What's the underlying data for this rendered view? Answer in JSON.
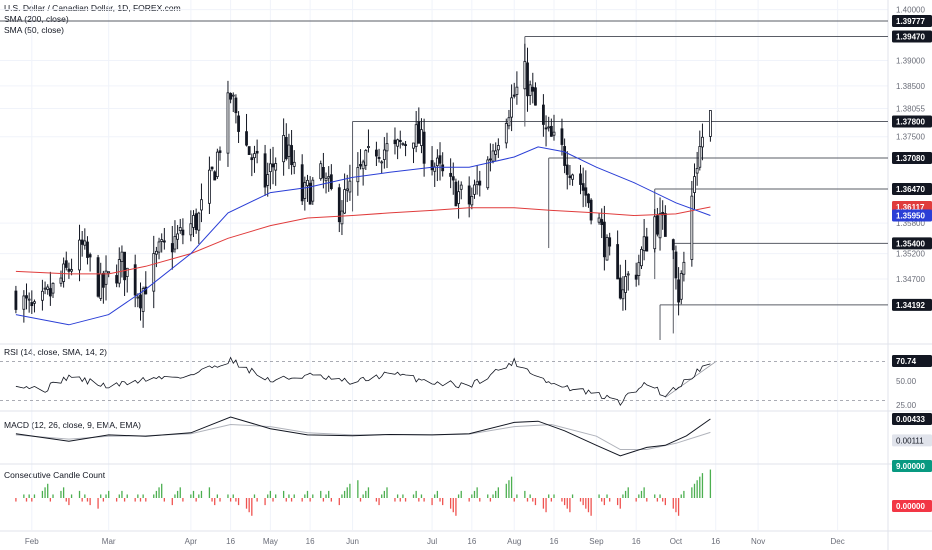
{
  "header": {
    "title": "U.S. Dollar / Canadian Dollar, 1D, FOREX.com",
    "sma200_label": "SMA (200, close)",
    "sma50_label": "SMA (50, close)"
  },
  "panes": {
    "rsi_label": "RSI (14, close, SMA, 14, 2)",
    "macd_label": "MACD (12, 26, close, 9, EMA, EMA)",
    "ccc_label": "Consecutive Candle Count"
  },
  "colors": {
    "bull": "#ffffff",
    "bear": "#131722",
    "wick": "#131722",
    "sma50": "#2a3ed6",
    "sma200": "#e03c3c",
    "rsi": "#131722",
    "rsi_ma": "#b0b3bb",
    "macd": "#131722",
    "signal": "#b0b3bb",
    "count_up": "#4caf50",
    "count_down": "#ef5350",
    "level_line": "#5a5d66"
  },
  "chart_data": {
    "type": "candlestick",
    "title": "U.S. Dollar / Canadian Dollar, 1D, FOREX.com",
    "x_axis": {
      "tick_labels": [
        "Feb",
        "Mar",
        "Apr",
        "16",
        "May",
        "16",
        "Jun",
        "Jul",
        "16",
        "Aug",
        "16",
        "Sep",
        "16",
        "Oct",
        "16",
        "Nov",
        "Dec"
      ],
      "tick_dates": [
        "2024-02-01",
        "2024-03-01",
        "2024-04-01",
        "2024-04-16",
        "2024-05-01",
        "2024-05-16",
        "2024-06-01",
        "2024-07-01",
        "2024-07-16",
        "2024-08-01",
        "2024-08-16",
        "2024-09-01",
        "2024-09-16",
        "2024-10-01",
        "2024-10-16",
        "2024-11-01",
        "2024-12-01"
      ]
    },
    "price_axis": {
      "ylim": [
        1.335,
        1.4015
      ],
      "tick_labels": [
        "1.40000",
        "1.39000",
        "1.38500",
        "1.38055",
        "1.37500",
        "1.35800",
        "1.35200",
        "1.34700"
      ],
      "tick_values": [
        1.4,
        1.39,
        1.385,
        1.38055,
        1.375,
        1.358,
        1.352,
        1.347
      ]
    },
    "levels": [
      {
        "label": "1.39777",
        "value": 1.39777,
        "from": "2023-11-01"
      },
      {
        "label": "1.39470",
        "value": 1.3947,
        "from": "2024-08-05"
      },
      {
        "label": "1.37800",
        "value": 1.378,
        "from": "2024-06-01"
      },
      {
        "label": "1.37080",
        "value": 1.3708,
        "from": "2024-08-14"
      },
      {
        "label": "1.36470",
        "value": 1.3647,
        "from": "2024-09-23"
      },
      {
        "label": "1.35400",
        "value": 1.354,
        "from": "2024-09-30"
      },
      {
        "label": "1.34192",
        "value": 1.34192,
        "from": "2024-09-25"
      }
    ],
    "price_tags": [
      {
        "label": "1.36117",
        "value": 1.36117,
        "color": "#e03c3c"
      },
      {
        "label": "1.35950",
        "value": 1.3595,
        "color": "#2a3ed6"
      }
    ],
    "close_path": [
      [
        "2024-01-26",
        1.344
      ],
      [
        "2024-02-02",
        1.34
      ],
      [
        "2024-02-13",
        1.3475
      ],
      [
        "2024-02-20",
        1.353
      ],
      [
        "2024-02-27",
        1.345
      ],
      [
        "2024-03-06",
        1.35
      ],
      [
        "2024-03-13",
        1.344
      ],
      [
        "2024-03-20",
        1.352
      ],
      [
        "2024-03-27",
        1.355
      ],
      [
        "2024-04-04",
        1.359
      ],
      [
        "2024-04-10",
        1.369
      ],
      [
        "2024-04-16",
        1.383
      ],
      [
        "2024-04-22",
        1.373
      ],
      [
        "2024-04-29",
        1.366
      ],
      [
        "2024-05-06",
        1.374
      ],
      [
        "2024-05-13",
        1.363
      ],
      [
        "2024-05-20",
        1.367
      ],
      [
        "2024-05-27",
        1.361
      ],
      [
        "2024-06-03",
        1.367
      ],
      [
        "2024-06-10",
        1.373
      ],
      [
        "2024-06-17",
        1.372
      ],
      [
        "2024-06-24",
        1.376
      ],
      [
        "2024-07-01",
        1.37
      ],
      [
        "2024-07-08",
        1.365
      ],
      [
        "2024-07-15",
        1.362
      ],
      [
        "2024-07-22",
        1.37
      ],
      [
        "2024-07-29",
        1.38
      ],
      [
        "2024-08-05",
        1.387
      ],
      [
        "2024-08-12",
        1.376
      ],
      [
        "2024-08-19",
        1.372
      ],
      [
        "2024-08-26",
        1.366
      ],
      [
        "2024-09-02",
        1.358
      ],
      [
        "2024-09-09",
        1.345
      ],
      [
        "2024-09-16",
        1.349
      ],
      [
        "2024-09-23",
        1.359
      ],
      [
        "2024-09-30",
        1.355
      ],
      [
        "2024-10-02",
        1.344
      ],
      [
        "2024-10-05",
        1.353
      ],
      [
        "2024-10-08",
        1.368
      ],
      [
        "2024-10-11",
        1.375
      ],
      [
        "2024-10-14",
        1.379
      ]
    ],
    "sma50_path": [
      [
        "2024-01-26",
        1.34
      ],
      [
        "2024-02-15",
        1.338
      ],
      [
        "2024-03-01",
        1.34
      ],
      [
        "2024-03-15",
        1.345
      ],
      [
        "2024-04-01",
        1.352
      ],
      [
        "2024-04-15",
        1.36
      ],
      [
        "2024-05-01",
        1.364
      ],
      [
        "2024-05-15",
        1.365
      ],
      [
        "2024-06-01",
        1.367
      ],
      [
        "2024-06-15",
        1.368
      ],
      [
        "2024-07-01",
        1.369
      ],
      [
        "2024-07-15",
        1.369
      ],
      [
        "2024-08-01",
        1.371
      ],
      [
        "2024-08-10",
        1.373
      ],
      [
        "2024-08-20",
        1.372
      ],
      [
        "2024-09-01",
        1.369
      ],
      [
        "2024-09-15",
        1.366
      ],
      [
        "2024-10-01",
        1.362
      ],
      [
        "2024-10-14",
        1.3595
      ]
    ],
    "sma200_path": [
      [
        "2024-01-26",
        1.3485
      ],
      [
        "2024-02-15",
        1.348
      ],
      [
        "2024-03-01",
        1.348
      ],
      [
        "2024-03-15",
        1.3495
      ],
      [
        "2024-04-01",
        1.352
      ],
      [
        "2024-04-15",
        1.355
      ],
      [
        "2024-05-01",
        1.3575
      ],
      [
        "2024-05-15",
        1.359
      ],
      [
        "2024-06-01",
        1.3595
      ],
      [
        "2024-06-15",
        1.36
      ],
      [
        "2024-07-01",
        1.3605
      ],
      [
        "2024-07-15",
        1.361
      ],
      [
        "2024-08-01",
        1.361
      ],
      [
        "2024-08-15",
        1.3605
      ],
      [
        "2024-09-01",
        1.36
      ],
      [
        "2024-09-15",
        1.3595
      ],
      [
        "2024-10-01",
        1.3598
      ],
      [
        "2024-10-14",
        1.36117
      ]
    ],
    "rsi": {
      "label": "RSI (14, close, SMA, 14, 2)",
      "ylim": [
        20,
        80
      ],
      "tick_labels": [
        "70.74",
        "50.00",
        "25.00"
      ],
      "tick_values": [
        70.74,
        50,
        25
      ],
      "guide_levels": [
        70,
        30
      ],
      "current": "70.74",
      "path": [
        [
          "2024-01-26",
          48
        ],
        [
          "2024-02-05",
          40
        ],
        [
          "2024-02-15",
          55
        ],
        [
          "2024-03-01",
          44
        ],
        [
          "2024-03-15",
          52
        ],
        [
          "2024-04-01",
          56
        ],
        [
          "2024-04-16",
          72
        ],
        [
          "2024-05-01",
          50
        ],
        [
          "2024-05-15",
          56
        ],
        [
          "2024-06-01",
          48
        ],
        [
          "2024-06-15",
          58
        ],
        [
          "2024-07-01",
          49
        ],
        [
          "2024-07-15",
          45
        ],
        [
          "2024-08-01",
          70
        ],
        [
          "2024-08-15",
          47
        ],
        [
          "2024-09-01",
          36
        ],
        [
          "2024-09-10",
          28
        ],
        [
          "2024-09-20",
          49
        ],
        [
          "2024-09-27",
          35
        ],
        [
          "2024-10-05",
          51
        ],
        [
          "2024-10-14",
          70.74
        ]
      ],
      "trend_line": [
        [
          "2024-09-27",
          33
        ],
        [
          "2024-10-16",
          70
        ]
      ]
    },
    "macd": {
      "label": "MACD (12, 26, close, 9, EMA, EMA)",
      "ylim": [
        -0.006,
        0.006
      ],
      "tick_labels": [
        "0.00433",
        "0.00111"
      ],
      "tick_values": [
        0.00433,
        0.00111
      ],
      "macd_path": [
        [
          "2024-01-26",
          0.0008
        ],
        [
          "2024-02-15",
          -0.001
        ],
        [
          "2024-03-01",
          0.0005
        ],
        [
          "2024-03-15",
          0.0002
        ],
        [
          "2024-04-01",
          0.001
        ],
        [
          "2024-04-16",
          0.0048
        ],
        [
          "2024-05-01",
          0.002
        ],
        [
          "2024-05-15",
          0.0005
        ],
        [
          "2024-06-01",
          0.0003
        ],
        [
          "2024-06-15",
          0.0006
        ],
        [
          "2024-07-01",
          0.0005
        ],
        [
          "2024-07-15",
          0.0008
        ],
        [
          "2024-08-01",
          0.0035
        ],
        [
          "2024-08-10",
          0.0038
        ],
        [
          "2024-08-20",
          0.0015
        ],
        [
          "2024-09-01",
          -0.002
        ],
        [
          "2024-09-10",
          -0.0045
        ],
        [
          "2024-09-20",
          -0.0025
        ],
        [
          "2024-09-27",
          -0.002
        ],
        [
          "2024-10-05",
          0.0003
        ],
        [
          "2024-10-14",
          0.00433
        ]
      ],
      "signal_path": [
        [
          "2024-01-26",
          0.0005
        ],
        [
          "2024-02-15",
          -0.0005
        ],
        [
          "2024-03-01",
          0.0002
        ],
        [
          "2024-03-15",
          0.0003
        ],
        [
          "2024-04-01",
          0.0008
        ],
        [
          "2024-04-16",
          0.003
        ],
        [
          "2024-05-01",
          0.0025
        ],
        [
          "2024-05-15",
          0.001
        ],
        [
          "2024-06-01",
          0.0005
        ],
        [
          "2024-06-15",
          0.0006
        ],
        [
          "2024-07-01",
          0.0005
        ],
        [
          "2024-07-15",
          0.0007
        ],
        [
          "2024-08-01",
          0.0025
        ],
        [
          "2024-08-15",
          0.003
        ],
        [
          "2024-09-01",
          0.0002
        ],
        [
          "2024-09-10",
          -0.003
        ],
        [
          "2024-09-20",
          -0.003
        ],
        [
          "2024-10-01",
          -0.0015
        ],
        [
          "2024-10-14",
          0.00111
        ]
      ]
    },
    "candle_count": {
      "label": "Consecutive Candle Count",
      "ylim": [
        -9,
        9
      ],
      "tick_labels": [
        "9.00000",
        "0.00000"
      ],
      "tick_values": [
        9,
        0
      ]
    }
  }
}
